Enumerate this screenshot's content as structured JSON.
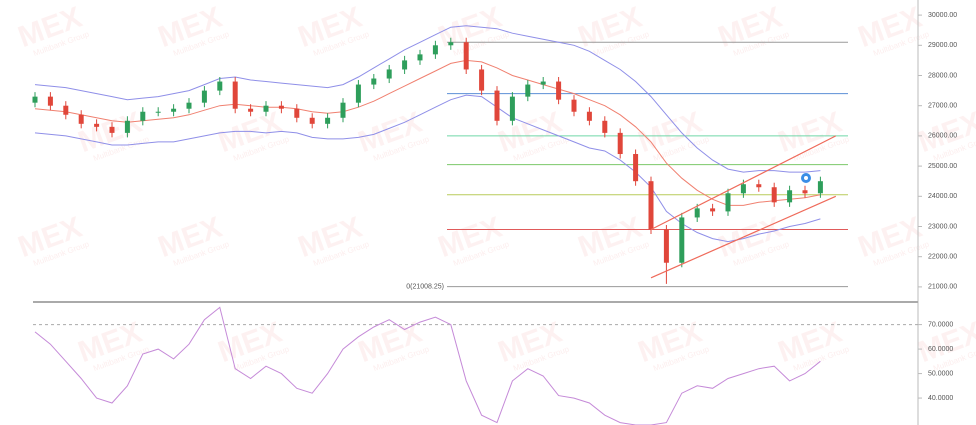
{
  "chart_data": [
    {
      "type": "candlestick",
      "watermark": "MEX",
      "watermark_sub": "Multibank Group",
      "open": [
        27100,
        27300,
        27000,
        26700,
        26400,
        26300,
        26100,
        26500,
        26800,
        26800,
        26900,
        27100,
        27500,
        27800,
        26900,
        26800,
        27000,
        26900,
        26600,
        26400,
        26600,
        27100,
        27700,
        27900,
        28200,
        28500,
        28700,
        29000,
        29100,
        28200,
        27500,
        26500,
        27300,
        27700,
        27800,
        27200,
        26800,
        26500,
        26100,
        25400,
        24500,
        22900,
        21800,
        23300,
        23600,
        23500,
        24100,
        24400,
        24300,
        23800,
        24200,
        24100
      ],
      "high": [
        27450,
        27450,
        27150,
        26850,
        26550,
        26450,
        26650,
        26950,
        26950,
        27050,
        27250,
        27650,
        27950,
        27950,
        27050,
        27150,
        27150,
        27050,
        26750,
        26750,
        27250,
        27850,
        28050,
        28350,
        28650,
        28850,
        29150,
        29250,
        29250,
        28350,
        27650,
        27450,
        27850,
        27950,
        27950,
        27350,
        26950,
        26650,
        26250,
        25550,
        24650,
        23050,
        23450,
        23750,
        23750,
        24250,
        24550,
        24550,
        24450,
        24350,
        24350,
        24650
      ],
      "low": [
        26950,
        26850,
        26550,
        26250,
        26150,
        25950,
        25950,
        26350,
        26650,
        26650,
        26750,
        26950,
        27350,
        26750,
        26650,
        26650,
        26750,
        26450,
        26250,
        26250,
        26450,
        26950,
        27550,
        27750,
        28050,
        28350,
        28550,
        28850,
        28050,
        27350,
        26350,
        26350,
        27150,
        27550,
        27050,
        26650,
        26350,
        25950,
        25250,
        24350,
        22750,
        21100,
        21650,
        23150,
        23350,
        23350,
        23950,
        24150,
        23650,
        23650,
        23950,
        23950
      ],
      "close": [
        27300,
        27000,
        26700,
        26400,
        26300,
        26100,
        26500,
        26800,
        26800,
        26900,
        27100,
        27500,
        27800,
        26900,
        26800,
        27000,
        26900,
        26600,
        26400,
        26600,
        27100,
        27700,
        27900,
        28200,
        28500,
        28700,
        29000,
        29100,
        28200,
        27500,
        26500,
        27300,
        27700,
        27800,
        27200,
        26800,
        26500,
        26100,
        25400,
        24500,
        22900,
        21800,
        23300,
        23600,
        23500,
        24100,
        24400,
        24300,
        23800,
        24200,
        24100,
        24500
      ],
      "up_color": "#2e9e5b",
      "down_color": "#e0463a",
      "bands": [
        {
          "color": "#8f8fe8",
          "values": [
            27700,
            27650,
            27600,
            27500,
            27400,
            27300,
            27200,
            27250,
            27300,
            27400,
            27500,
            27700,
            27900,
            27950,
            27850,
            27800,
            27750,
            27700,
            27650,
            27600,
            27700,
            27950,
            28250,
            28550,
            28850,
            29100,
            29350,
            29600,
            29650,
            29600,
            29550,
            29400,
            29300,
            29200,
            29100,
            29000,
            28800,
            28500,
            28200,
            27800,
            27300,
            26700,
            26100,
            25600,
            25200,
            24900,
            24800,
            24850,
            24850,
            24800,
            24800,
            24850
          ]
        },
        {
          "color": "#f08070",
          "values": [
            26900,
            26850,
            26800,
            26700,
            26600,
            26500,
            26450,
            26500,
            26550,
            26600,
            26700,
            26850,
            27000,
            27050,
            27000,
            26950,
            26950,
            26900,
            26800,
            26750,
            26800,
            26950,
            27150,
            27400,
            27650,
            27900,
            28150,
            28400,
            28500,
            28450,
            28250,
            28000,
            27850,
            27700,
            27550,
            27400,
            27200,
            27000,
            26700,
            26300,
            25800,
            25100,
            24600,
            24200,
            23900,
            23700,
            23700,
            23800,
            23850,
            23900,
            23950,
            24050
          ]
        },
        {
          "color": "#8f8fe8",
          "values": [
            26100,
            26050,
            26000,
            25900,
            25800,
            25700,
            25700,
            25750,
            25800,
            25800,
            25900,
            26000,
            26100,
            26150,
            26150,
            26100,
            26150,
            26100,
            25950,
            25900,
            25900,
            25950,
            26050,
            26250,
            26450,
            26700,
            26950,
            27200,
            27350,
            27300,
            26950,
            26600,
            26400,
            26200,
            26000,
            25800,
            25600,
            25500,
            25200,
            24800,
            24300,
            23500,
            23100,
            22800,
            22600,
            22500,
            22600,
            22750,
            22850,
            23000,
            23100,
            23250
          ]
        }
      ],
      "levels": [
        {
          "value": 29100,
          "color": "#9a9a9a"
        },
        {
          "value": 27400,
          "color": "#5b8fd6"
        },
        {
          "value": 26000,
          "color": "#6fd6a8"
        },
        {
          "value": 25050,
          "color": "#7cc86a"
        },
        {
          "value": 24050,
          "color": "#b8cc5a"
        },
        {
          "value": 22900,
          "color": "#e05a5a"
        },
        {
          "value": 21008.25,
          "color": "#9a9a9a",
          "label": "0(21008.25)"
        }
      ],
      "trendlines": [
        {
          "from": [
            40,
            22900
          ],
          "to": [
            52,
            26000
          ],
          "color": "#ef6a5a"
        },
        {
          "from": [
            40,
            21300
          ],
          "to": [
            52,
            24000
          ],
          "color": "#ef6a5a"
        }
      ],
      "ylim": [
        20500,
        30500
      ],
      "yticks": [
        {
          "value": 30000,
          "label": "30000.00"
        },
        {
          "value": 29000,
          "label": "29000.00"
        },
        {
          "value": 28000,
          "label": "28000.00"
        },
        {
          "value": 27000,
          "label": "27000.00"
        },
        {
          "value": 26000,
          "label": "26000.00"
        },
        {
          "value": 25000,
          "label": "25000.00"
        },
        {
          "value": 24000,
          "label": "24000.00"
        },
        {
          "value": 23000,
          "label": "23000.00"
        },
        {
          "value": 22000,
          "label": "22000.00"
        },
        {
          "value": 21000,
          "label": "21000.00"
        }
      ]
    },
    {
      "type": "line",
      "color": "#c58ad8",
      "values": [
        67,
        62,
        55,
        48,
        40,
        38,
        45,
        58,
        60,
        56,
        62,
        72,
        77,
        52,
        48,
        53,
        50,
        44,
        42,
        50,
        60,
        65,
        69,
        72,
        68,
        71,
        73,
        70,
        47,
        33,
        30,
        47,
        52,
        49,
        41,
        40,
        38,
        33,
        30,
        29,
        29,
        30,
        42,
        45,
        44,
        48,
        50,
        52,
        53,
        47,
        50,
        55
      ],
      "level": 70,
      "ylim": [
        29,
        78
      ],
      "yticks": [
        {
          "value": 70,
          "label": "70.0000"
        },
        {
          "value": 60,
          "label": "60.0000"
        },
        {
          "value": 50,
          "label": "50.0000"
        },
        {
          "value": 40,
          "label": "40.0000"
        }
      ]
    }
  ]
}
